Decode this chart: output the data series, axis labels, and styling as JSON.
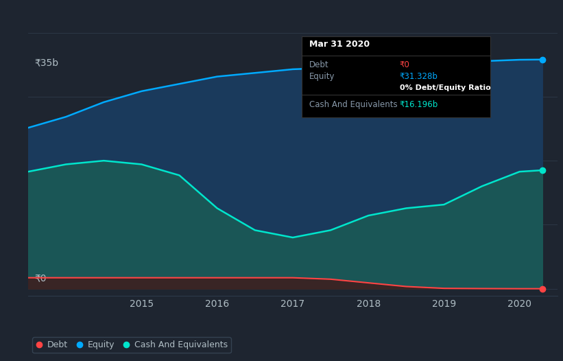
{
  "bg_color": "#1e2530",
  "plot_bg_color": "#1e2530",
  "ylabel_35b": "₹35b",
  "ylabel_0": "₹0",
  "x_ticks": [
    2015,
    2016,
    2017,
    2018,
    2019,
    2020
  ],
  "years": [
    2013.5,
    2014.0,
    2014.5,
    2015.0,
    2015.5,
    2016.0,
    2016.5,
    2017.0,
    2017.5,
    2018.0,
    2018.5,
    2019.0,
    2019.5,
    2020.0,
    2020.3
  ],
  "equity": [
    22,
    23.5,
    25.5,
    27,
    28,
    29,
    29.5,
    30,
    30.2,
    30.5,
    30.7,
    30.9,
    31.1,
    31.3,
    31.328
  ],
  "cash": [
    16,
    17,
    17.5,
    17,
    15.5,
    11,
    8,
    7,
    8,
    10,
    11,
    11.5,
    14,
    16,
    16.196
  ],
  "debt": [
    1.5,
    1.5,
    1.5,
    1.5,
    1.5,
    1.5,
    1.5,
    1.5,
    1.3,
    0.8,
    0.3,
    0.05,
    0.02,
    0.0,
    0.0
  ],
  "ylim_min": -1,
  "ylim_max": 37,
  "xlim_min": 2013.5,
  "xlim_max": 2020.5,
  "equity_line_color": "#00aaff",
  "cash_line_color": "#00e5cc",
  "debt_line_color": "#ff4444",
  "equity_fill_color": "#1a3a5c",
  "cash_fill_color": "#1a5c55",
  "debt_fill_color": "#3d2020",
  "grid_color": "#2e3a4a",
  "text_color": "#b0bec5",
  "tooltip_bg": "#000000",
  "tooltip_border": "#333333",
  "tooltip_title": "Mar 31 2020",
  "tooltip_debt_label": "Debt",
  "tooltip_debt_value": "₹0",
  "tooltip_equity_label": "Equity",
  "tooltip_equity_value": "₹31.328b",
  "tooltip_ratio": "0% Debt/Equity Ratio",
  "tooltip_cash_label": "Cash And Equivalents",
  "tooltip_cash_value": "₹16.196b",
  "legend_debt": "Debt",
  "legend_equity": "Equity",
  "legend_cash": "Cash And Equivalents"
}
